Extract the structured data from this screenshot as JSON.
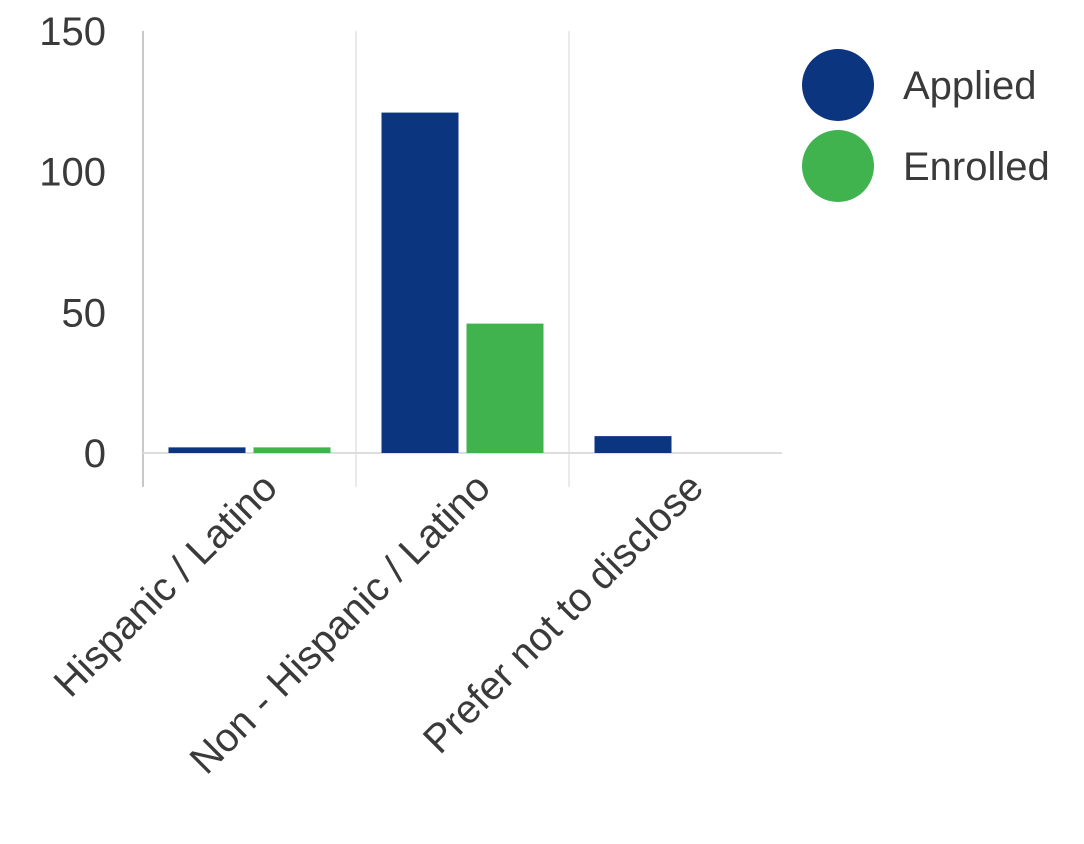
{
  "chart_data": {
    "type": "bar",
    "categories": [
      "Hispanic / Latino",
      "Non - Hispanic / Latino",
      "Prefer not to disclose"
    ],
    "series": [
      {
        "name": "Applied",
        "color": "#0c3580",
        "values": [
          2,
          121,
          6
        ]
      },
      {
        "name": "Enrolled",
        "color": "#40b34f",
        "values": [
          2,
          46,
          0
        ]
      }
    ],
    "yticks": [
      0,
      50,
      100,
      150
    ],
    "ylim": [
      0,
      150
    ],
    "grid": true,
    "legend": "top-right",
    "title": "",
    "xlabel": "",
    "ylabel": ""
  }
}
